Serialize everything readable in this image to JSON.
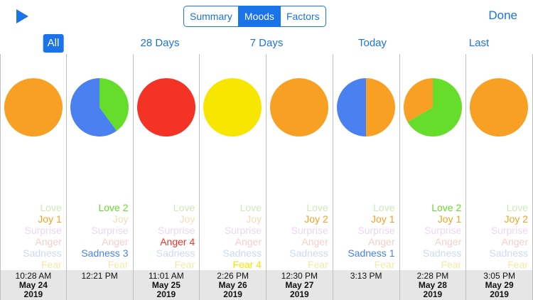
{
  "colors": {
    "accent": "#1a73e8",
    "joy": "#f7a024",
    "love": "#66dd2a",
    "anger": "#f23325",
    "fear": "#f7e600",
    "sadness": "#4a80f0",
    "surprise": "#d9a6f0",
    "faded_love": "#cbe9b9",
    "faded_joy": "#f3dcb6",
    "faded_surprise": "#ecd6f4",
    "faded_anger": "#f5cfcb",
    "faded_sadness": "#c9dbf5",
    "faded_fear": "#f3eaa6"
  },
  "toolbar": {
    "play_icon": "play-icon",
    "segments": [
      "Summary",
      "Moods",
      "Factors"
    ],
    "active_segment": "Moods",
    "done_label": "Done"
  },
  "filters": {
    "items": [
      "All",
      "28 Days",
      "7 Days",
      "Today",
      "Last"
    ],
    "active": "All"
  },
  "mood_names": [
    "Love",
    "Joy",
    "Surprise",
    "Anger",
    "Sadness",
    "Fear"
  ],
  "entries": [
    {
      "moods": [
        {
          "name": "Love",
          "label": "Love"
        },
        {
          "name": "Joy",
          "label": "Joy 1",
          "active": true
        },
        {
          "name": "Surprise",
          "label": "Surprise"
        },
        {
          "name": "Anger",
          "label": "Anger"
        },
        {
          "name": "Sadness",
          "label": "Sadness"
        },
        {
          "name": "Fear",
          "label": "Fear"
        }
      ],
      "pie": [
        {
          "mood": "joy",
          "value": 1
        }
      ],
      "time": "10:28 AM",
      "date_line1": "May 24",
      "date_line2": "2019"
    },
    {
      "moods": [
        {
          "name": "Love",
          "label": "Love 2",
          "active": true
        },
        {
          "name": "Joy",
          "label": "Joy"
        },
        {
          "name": "Surprise",
          "label": "Surprise"
        },
        {
          "name": "Anger",
          "label": "Anger"
        },
        {
          "name": "Sadness",
          "label": "Sadness 3",
          "active": true
        },
        {
          "name": "Fear",
          "label": "Fear"
        }
      ],
      "pie": [
        {
          "mood": "love",
          "value": 2
        },
        {
          "mood": "sadness",
          "value": 3
        }
      ],
      "time": "12:21 PM",
      "date_line1": "",
      "date_line2": ""
    },
    {
      "moods": [
        {
          "name": "Love",
          "label": "Love"
        },
        {
          "name": "Joy",
          "label": "Joy"
        },
        {
          "name": "Surprise",
          "label": "Surprise"
        },
        {
          "name": "Anger",
          "label": "Anger 4",
          "active": true
        },
        {
          "name": "Sadness",
          "label": "Sadness"
        },
        {
          "name": "Fear",
          "label": "Fear"
        }
      ],
      "pie": [
        {
          "mood": "anger",
          "value": 4
        }
      ],
      "time": "11:01 AM",
      "date_line1": "May 25",
      "date_line2": "2019"
    },
    {
      "moods": [
        {
          "name": "Love",
          "label": "Love"
        },
        {
          "name": "Joy",
          "label": "Joy"
        },
        {
          "name": "Surprise",
          "label": "Surprise"
        },
        {
          "name": "Anger",
          "label": "Anger"
        },
        {
          "name": "Sadness",
          "label": "Sadness"
        },
        {
          "name": "Fear",
          "label": "Fear 4",
          "active": true
        }
      ],
      "pie": [
        {
          "mood": "fear",
          "value": 4
        }
      ],
      "time": "2:26 PM",
      "date_line1": "May 26",
      "date_line2": "2019"
    },
    {
      "moods": [
        {
          "name": "Love",
          "label": "Love"
        },
        {
          "name": "Joy",
          "label": "Joy 2",
          "active": true
        },
        {
          "name": "Surprise",
          "label": "Surprise"
        },
        {
          "name": "Anger",
          "label": "Anger"
        },
        {
          "name": "Sadness",
          "label": "Sadness"
        },
        {
          "name": "Fear",
          "label": "Fear"
        }
      ],
      "pie": [
        {
          "mood": "joy",
          "value": 2
        }
      ],
      "time": "12:30 PM",
      "date_line1": "May 27",
      "date_line2": "2019"
    },
    {
      "moods": [
        {
          "name": "Love",
          "label": "Love"
        },
        {
          "name": "Joy",
          "label": "Joy 1",
          "active": true
        },
        {
          "name": "Surprise",
          "label": "Surprise"
        },
        {
          "name": "Anger",
          "label": "Anger"
        },
        {
          "name": "Sadness",
          "label": "Sadness 1",
          "active": true
        },
        {
          "name": "Fear",
          "label": "Fear"
        }
      ],
      "pie": [
        {
          "mood": "joy",
          "value": 1
        },
        {
          "mood": "sadness",
          "value": 1
        }
      ],
      "time": "3:13 PM",
      "date_line1": "",
      "date_line2": ""
    },
    {
      "moods": [
        {
          "name": "Love",
          "label": "Love 2",
          "active": true
        },
        {
          "name": "Joy",
          "label": "Joy 1",
          "active": true
        },
        {
          "name": "Surprise",
          "label": "Surprise"
        },
        {
          "name": "Anger",
          "label": "Anger"
        },
        {
          "name": "Sadness",
          "label": "Sadness"
        },
        {
          "name": "Fear",
          "label": "Fear"
        }
      ],
      "pie": [
        {
          "mood": "love",
          "value": 2
        },
        {
          "mood": "joy",
          "value": 1
        }
      ],
      "time": "2:28 PM",
      "date_line1": "May 28",
      "date_line2": "2019"
    },
    {
      "moods": [
        {
          "name": "Love",
          "label": "Love"
        },
        {
          "name": "Joy",
          "label": "Joy 2",
          "active": true
        },
        {
          "name": "Surprise",
          "label": "Surprise"
        },
        {
          "name": "Anger",
          "label": "Anger"
        },
        {
          "name": "Sadness",
          "label": "Sadness"
        },
        {
          "name": "Fear",
          "label": "Fear"
        }
      ],
      "pie": [
        {
          "mood": "joy",
          "value": 2
        }
      ],
      "time": "3:05 PM",
      "date_line1": "May 29",
      "date_line2": "2019"
    }
  ]
}
